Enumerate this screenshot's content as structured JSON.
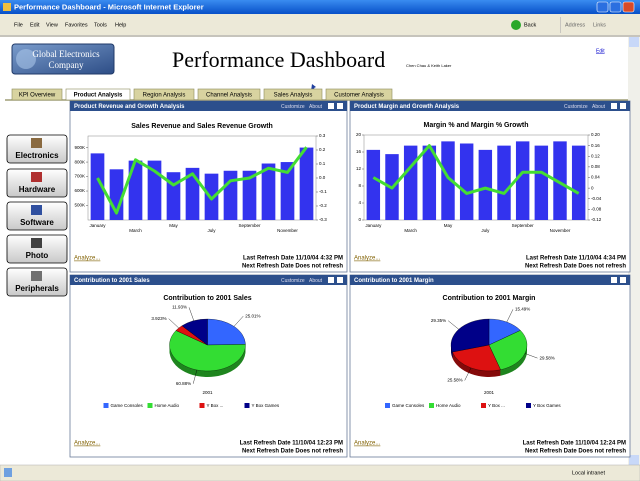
{
  "window": {
    "title": "Performance Dashboard - Microsoft Internet Explorer",
    "menu": [
      "File",
      "Edit",
      "View",
      "Favorites",
      "Tools",
      "Help"
    ],
    "back": "Back",
    "address": "Address",
    "links": "Links",
    "status": "Local intranet"
  },
  "header": {
    "company": [
      "Global Electronics",
      "Company"
    ],
    "title": "Performance Dashboard",
    "authors": "Chen Chau & Keith Laker",
    "edit": "Edit"
  },
  "tabs": [
    "KPI Overview",
    "Product Analysis",
    "Region Analysis",
    "Channel Analysis",
    "Sales Analysis",
    "Customer Analysis"
  ],
  "sidebar": [
    "Electronics",
    "Hardware",
    "Software",
    "Photo",
    "Peripherals"
  ],
  "panels": [
    {
      "title": "Product Revenue and Growth Analysis",
      "customize": "Customize",
      "about": "About",
      "chart": {
        "type": "bar_line",
        "title": "Sales Revenue and Sales Revenue Growth",
        "categories": [
          "January",
          null,
          "March",
          null,
          "May",
          null,
          "July",
          null,
          "September",
          null,
          "November",
          null
        ],
        "series": [
          {
            "color": "#3333ee",
            "values": [
              860000,
              750000,
              810000,
              810000,
              730000,
              760000,
              720000,
              740000,
              740000,
              790000,
              800000,
              900000
            ]
          },
          {
            "color": "#44dd33",
            "axis": "y2",
            "values": [
              0.0,
              -0.25,
              0.13,
              0.05,
              -0.05,
              0.03,
              -0.15,
              -0.02,
              0.0,
              0.07,
              0.04,
              0.22
            ]
          }
        ],
        "ylim": [
          400000,
          980000
        ],
        "yticks": [
          {
            "value": 500000,
            "label": "500K"
          },
          {
            "value": 600000,
            "label": "600K"
          },
          {
            "value": 700000,
            "label": "700K"
          },
          {
            "value": 800000,
            "label": "800K"
          },
          {
            "value": 900000,
            "label": "900K"
          }
        ],
        "y2lim": [
          -0.3,
          0.3
        ],
        "y2ticks": [
          -0.3,
          -0.2,
          -0.1,
          {
            "value": 0,
            "label": "0.0"
          },
          0.1,
          0.2,
          0.3
        ]
      },
      "analyze": "Analyze...",
      "last_refresh": "Last Refresh Date 11/10/04 4:32 PM",
      "next_refresh": "Next Refresh Date Does not refresh"
    },
    {
      "title": "Product Margin and Growth Analysis",
      "customize": "Customize",
      "about": "About",
      "chart": {
        "type": "bar_line",
        "title": "Margin % and Margin % Growth",
        "categories": [
          "January",
          null,
          "March",
          null,
          "May",
          null,
          "July",
          null,
          "September",
          null,
          "November",
          null
        ],
        "series": [
          {
            "color": "#3333ee",
            "values": [
              16.5,
              15.5,
              17.5,
              17.5,
              18.5,
              18,
              16.5,
              17.5,
              18.5,
              17.5,
              18.5,
              17.5
            ]
          },
          {
            "color": "#44dd33",
            "axis": "y2",
            "values": [
              0.04,
              0.0,
              0.08,
              0.16,
              0.04,
              -0.02,
              0.0,
              -0.02,
              0.06,
              0.06,
              0.02,
              -0.02
            ]
          }
        ],
        "ylim": [
          0,
          20
        ],
        "yticks": [
          0,
          4,
          8,
          12,
          16,
          20
        ],
        "y2lim": [
          -0.12,
          0.2
        ],
        "y2ticks": [
          -0.12,
          -0.08,
          -0.04,
          0,
          0.04,
          0.08,
          0.12,
          0.16,
          {
            "value": 0.2,
            "label": "0.20"
          }
        ]
      },
      "analyze": "Analyze...",
      "last_refresh": "Last Refresh Date 11/10/04 4:34 PM",
      "next_refresh": "Next Refresh Date Does not refresh"
    },
    {
      "title": "Contribution to 2001 Sales",
      "customize": "Customize",
      "about": "About",
      "chart": {
        "type": "pie",
        "title": "Contribution to 2001 Sales",
        "label": "2001",
        "categories": [
          "Game Consoles",
          "Home Audio",
          "Y Box ...",
          "Y Box Games"
        ],
        "values": [
          25.01,
          60.88,
          3.923,
          11.93
        ],
        "value_labels": [
          "25.01%",
          "60.88%",
          "3.923%",
          "11.93%"
        ],
        "colors": [
          "#3366ff",
          "#33dd33",
          "#dd1111",
          "#000088"
        ]
      },
      "analyze": "Analyze...",
      "last_refresh": "Last Refresh Date 11/10/04 12:23 PM",
      "next_refresh": "Next Refresh Date Does not refresh"
    },
    {
      "title": "Contribution to 2001 Margin",
      "chart": {
        "type": "pie",
        "title": "Contribution to 2001 Margin",
        "label": "2001",
        "categories": [
          "Game Consoles",
          "Home Audio",
          "Y Box ...",
          "Y Box Games"
        ],
        "values": [
          15.49,
          29.58,
          25.58,
          29.35
        ],
        "value_labels": [
          "15.49%",
          "29.58%",
          "25.58%",
          "29.35%"
        ],
        "colors": [
          "#3366ff",
          "#33dd33",
          "#dd1111",
          "#000088"
        ]
      },
      "analyze": "Analyze...",
      "last_refresh": "Last Refresh Date 11/10/04 12:24 PM",
      "next_refresh": "Next Refresh Date Does not refresh"
    }
  ]
}
